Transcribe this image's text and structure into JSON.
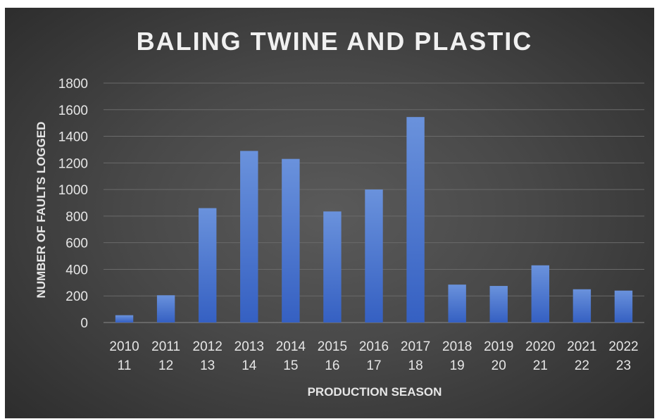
{
  "chart_data": {
    "type": "bar",
    "title": "BALING TWINE AND PLASTIC",
    "xlabel": "PRODUCTION SEASON",
    "ylabel": "NUMBER OF FAULTS LOGGED",
    "categories": [
      [
        "2010",
        "11"
      ],
      [
        "2011",
        "12"
      ],
      [
        "2012",
        "13"
      ],
      [
        "2013",
        "14"
      ],
      [
        "2014",
        "15"
      ],
      [
        "2015",
        "16"
      ],
      [
        "2016",
        "17"
      ],
      [
        "2017",
        "18"
      ],
      [
        "2018",
        "19"
      ],
      [
        "2019",
        "20"
      ],
      [
        "2020",
        "21"
      ],
      [
        "2021",
        "22"
      ],
      [
        "2022",
        "23"
      ]
    ],
    "values": [
      55,
      205,
      860,
      1290,
      1230,
      835,
      1000,
      1545,
      285,
      275,
      430,
      250,
      240
    ],
    "ylim": [
      0,
      1800
    ],
    "yticks": [
      0,
      200,
      400,
      600,
      800,
      1000,
      1200,
      1400,
      1600,
      1800
    ],
    "grid": true,
    "legend": "none",
    "colors": {
      "bar_top": "#6a92dc",
      "bar_bottom": "#3560c2",
      "background": "#454545"
    }
  }
}
